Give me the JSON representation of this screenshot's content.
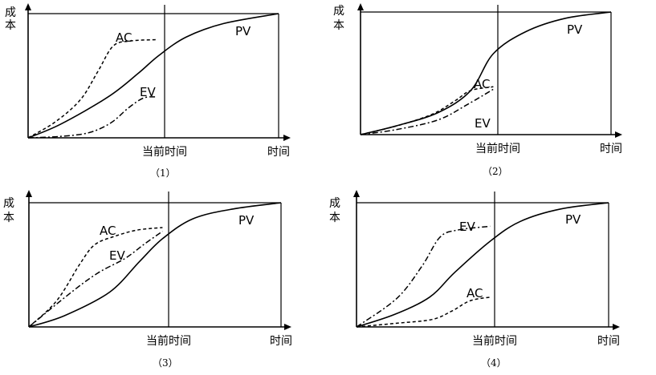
{
  "chart_data": [
    {
      "type": "line",
      "caption": "（1）",
      "ylabel": "成本",
      "xlabel": "时间",
      "status_label": "当前时间",
      "series": [
        {
          "name": "PV",
          "style": "solid",
          "points": [
            [
              0,
              0
            ],
            [
              0.13,
              0.11
            ],
            [
              0.32,
              0.33
            ],
            [
              0.44,
              0.52
            ],
            [
              0.52,
              0.66
            ],
            [
              0.63,
              0.81
            ],
            [
              0.78,
              0.92
            ],
            [
              1.0,
              1.0
            ]
          ]
        },
        {
          "name": "AC",
          "style": "dashed",
          "points": [
            [
              0,
              0
            ],
            [
              0.11,
              0.13
            ],
            [
              0.21,
              0.31
            ],
            [
              0.28,
              0.54
            ],
            [
              0.34,
              0.74
            ],
            [
              0.41,
              0.78
            ],
            [
              0.51,
              0.79
            ]
          ]
        },
        {
          "name": "EV",
          "style": "dash-dot",
          "points": [
            [
              0,
              0
            ],
            [
              0.12,
              0.01
            ],
            [
              0.24,
              0.04
            ],
            [
              0.33,
              0.12
            ],
            [
              0.4,
              0.24
            ],
            [
              0.46,
              0.32
            ],
            [
              0.51,
              0.33
            ]
          ]
        }
      ]
    },
    {
      "type": "line",
      "caption": "（2）",
      "ylabel": "成本",
      "xlabel": "时间",
      "status_label": "当前时间",
      "series": [
        {
          "name": "PV",
          "style": "solid",
          "points": [
            [
              0,
              0
            ],
            [
              0.14,
              0.07
            ],
            [
              0.31,
              0.18
            ],
            [
              0.44,
              0.36
            ],
            [
              0.53,
              0.66
            ],
            [
              0.66,
              0.84
            ],
            [
              0.82,
              0.95
            ],
            [
              1.0,
              1.0
            ]
          ]
        },
        {
          "name": "AC",
          "style": "dashed",
          "points": [
            [
              0,
              0
            ],
            [
              0.16,
              0.08
            ],
            [
              0.29,
              0.17
            ],
            [
              0.38,
              0.28
            ],
            [
              0.44,
              0.36
            ],
            [
              0.53,
              0.39
            ]
          ]
        },
        {
          "name": "EV",
          "style": "dash-dot",
          "points": [
            [
              0,
              0
            ],
            [
              0.14,
              0.04
            ],
            [
              0.31,
              0.12
            ],
            [
              0.43,
              0.25
            ],
            [
              0.53,
              0.37
            ]
          ]
        }
      ]
    },
    {
      "type": "line",
      "caption": "（3）",
      "ylabel": "成本",
      "xlabel": "时间",
      "status_label": "当前时间",
      "series": [
        {
          "name": "PV",
          "style": "solid",
          "points": [
            [
              0,
              0
            ],
            [
              0.14,
              0.09
            ],
            [
              0.32,
              0.28
            ],
            [
              0.44,
              0.53
            ],
            [
              0.53,
              0.71
            ],
            [
              0.65,
              0.87
            ],
            [
              0.81,
              0.95
            ],
            [
              1.0,
              1.0
            ]
          ]
        },
        {
          "name": "AC",
          "style": "dashed",
          "points": [
            [
              0,
              0
            ],
            [
              0.11,
              0.21
            ],
            [
              0.2,
              0.5
            ],
            [
              0.26,
              0.66
            ],
            [
              0.34,
              0.73
            ],
            [
              0.43,
              0.78
            ],
            [
              0.53,
              0.8
            ]
          ]
        },
        {
          "name": "EV",
          "style": "dash-dot",
          "points": [
            [
              0,
              0
            ],
            [
              0.15,
              0.25
            ],
            [
              0.27,
              0.43
            ],
            [
              0.38,
              0.55
            ],
            [
              0.46,
              0.67
            ],
            [
              0.53,
              0.77
            ]
          ]
        }
      ]
    },
    {
      "type": "line",
      "caption": "（4）",
      "ylabel": "成本",
      "xlabel": "时间",
      "status_label": "当前时间",
      "series": [
        {
          "name": "PV",
          "style": "solid",
          "points": [
            [
              0,
              0
            ],
            [
              0.15,
              0.1
            ],
            [
              0.29,
              0.24
            ],
            [
              0.39,
              0.44
            ],
            [
              0.53,
              0.69
            ],
            [
              0.65,
              0.85
            ],
            [
              0.81,
              0.95
            ],
            [
              1.0,
              1.0
            ]
          ]
        },
        {
          "name": "EV",
          "style": "dash-dot",
          "points": [
            [
              0,
              0
            ],
            [
              0.16,
              0.23
            ],
            [
              0.26,
              0.49
            ],
            [
              0.33,
              0.72
            ],
            [
              0.4,
              0.78
            ],
            [
              0.53,
              0.81
            ]
          ]
        },
        {
          "name": "AC",
          "style": "dashed",
          "points": [
            [
              0,
              0
            ],
            [
              0.16,
              0.03
            ],
            [
              0.3,
              0.06
            ],
            [
              0.38,
              0.13
            ],
            [
              0.45,
              0.21
            ],
            [
              0.53,
              0.24
            ]
          ]
        }
      ]
    }
  ]
}
